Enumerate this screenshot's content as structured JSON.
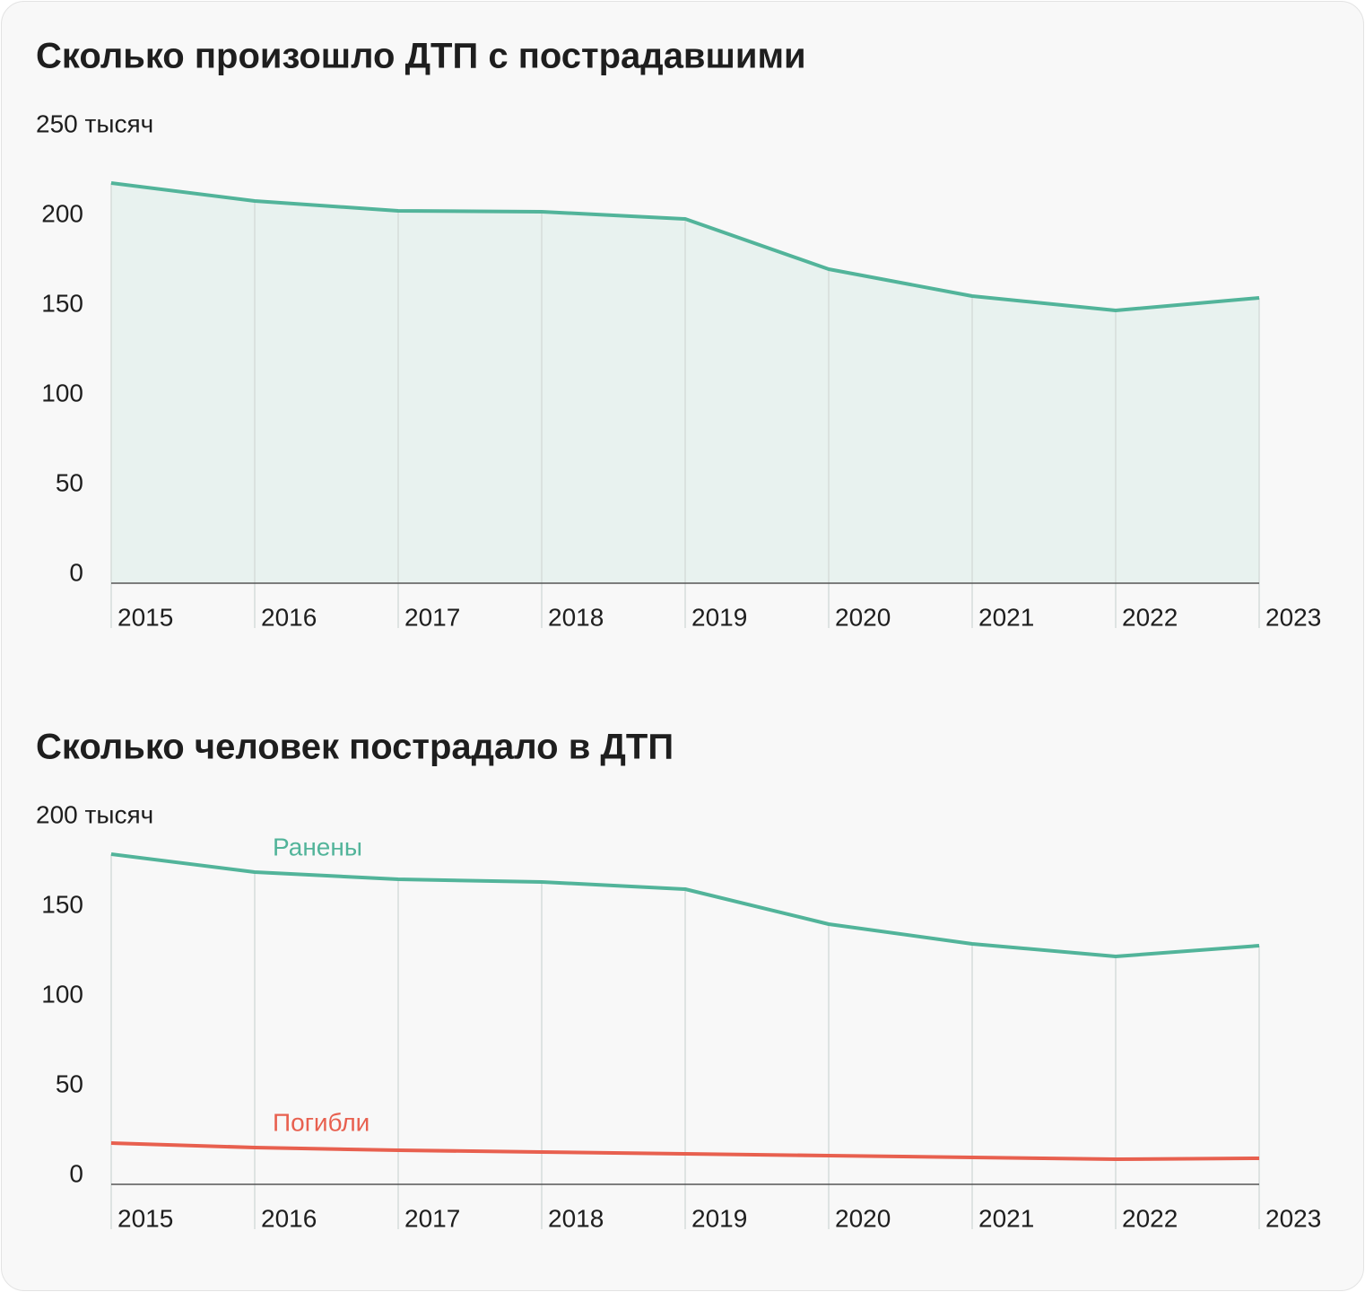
{
  "chart_data": [
    {
      "type": "area",
      "title": "Сколько произошло ДТП с пострадавшими",
      "categories": [
        "2015",
        "2016",
        "2017",
        "2018",
        "2019",
        "2020",
        "2021",
        "2022",
        "2023"
      ],
      "series": [
        {
          "name": null,
          "color": "#52b49a",
          "values": [
            223,
            213,
            207.5,
            207,
            203,
            175,
            160,
            152,
            159
          ]
        }
      ],
      "fill_color": "#e8f2ef",
      "ylim": [
        0,
        250
      ],
      "yticks": [
        0,
        50,
        100,
        150,
        200,
        {
          "value": 250,
          "label": "250 тысяч"
        }
      ]
    },
    {
      "type": "line",
      "title": "Сколько человек пострадало в ДТП",
      "categories": [
        "2015",
        "2016",
        "2017",
        "2018",
        "2019",
        "2020",
        "2021",
        "2022",
        "2023"
      ],
      "series": [
        {
          "name": "Ранены",
          "color": "#52b49a",
          "values": [
            184,
            174,
            170,
            168.5,
            164.5,
            145,
            134,
            127,
            133
          ]
        },
        {
          "name": "Погибли",
          "color": "#e8604f",
          "values": [
            23,
            20.5,
            19,
            18,
            17,
            16,
            15,
            14,
            14.5
          ]
        }
      ],
      "ylim": [
        0,
        200
      ],
      "yticks": [
        0,
        50,
        100,
        150,
        {
          "value": 200,
          "label": "200 тысяч"
        }
      ]
    }
  ]
}
